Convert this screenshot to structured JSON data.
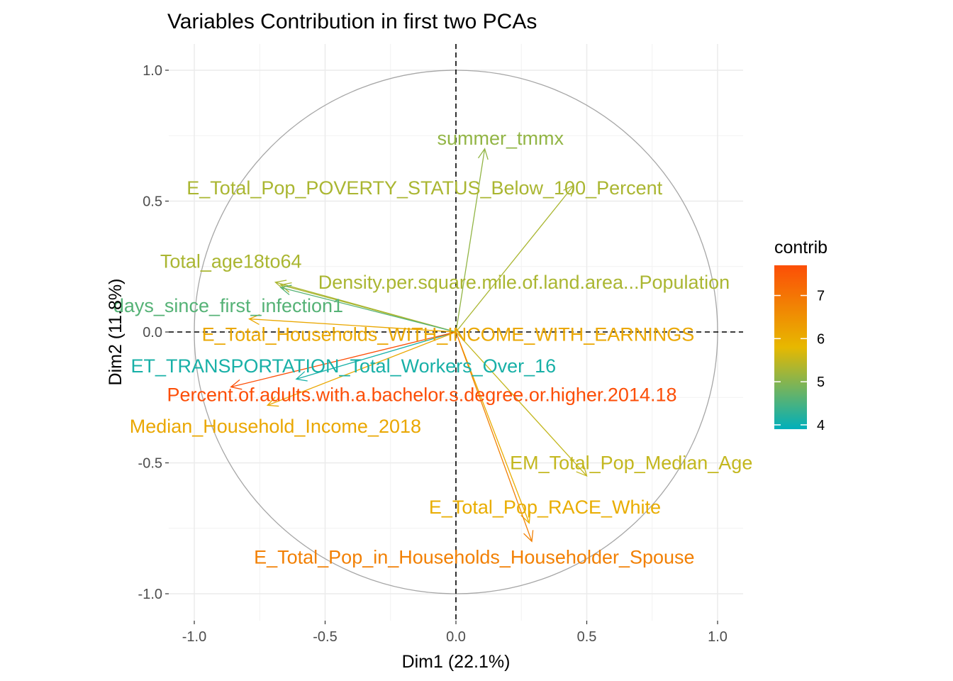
{
  "chart_data": {
    "type": "scatter",
    "subtype": "pca-variable-correlation-circle",
    "title": "Variables Contribution in first two PCAs",
    "xlabel": "Dim1 (22.1%)",
    "ylabel": "Dim2 (11.8%)",
    "xlim": [
      -1.1,
      1.1
    ],
    "ylim": [
      -1.1,
      1.1
    ],
    "x_ticks": [
      -1.0,
      -0.5,
      0.0,
      0.5,
      1.0
    ],
    "x_tick_labels": [
      "-1.0",
      "-0.5",
      "0.0",
      "0.5",
      "1.0"
    ],
    "y_ticks": [
      -1.0,
      -0.5,
      0.0,
      0.5,
      1.0
    ],
    "y_tick_labels": [
      "-1.0",
      "-0.5",
      "0.0",
      "0.5",
      "1.0"
    ],
    "grid": true,
    "unit_circle": true,
    "reference_lines": {
      "x": 0,
      "y": 0,
      "style": "dashed"
    },
    "color_scale": {
      "name": "contrib",
      "min": 3.9,
      "max": 7.7,
      "ticks": [
        4,
        5,
        6,
        7
      ],
      "tick_labels": [
        "4",
        "5",
        "6",
        "7"
      ],
      "colors": [
        "#00AFBB",
        "#E7B800",
        "#FC4E07"
      ],
      "legend_position": "right"
    },
    "variables": [
      {
        "label": "summer_tmmx",
        "x": 0.11,
        "y": 0.7,
        "label_x": 0.17,
        "label_y": 0.74,
        "contrib": 5.1
      },
      {
        "label": "E_Total_Pop_POVERTY_STATUS_Below_100_Percent",
        "x": 0.45,
        "y": 0.56,
        "label_x": -0.12,
        "label_y": 0.55,
        "contrib": 5.3
      },
      {
        "label": "Total_age18to64",
        "x": -0.69,
        "y": 0.19,
        "label_x": -0.86,
        "label_y": 0.27,
        "contrib": 5.3
      },
      {
        "label": "Density.per.square.mile.of.land.area...Population",
        "x": -0.67,
        "y": 0.18,
        "label_x": 0.26,
        "label_y": 0.19,
        "contrib": 5.3
      },
      {
        "label": "days_since_first_infection1",
        "x": -0.67,
        "y": 0.17,
        "label_x": -0.87,
        "label_y": 0.1,
        "contrib": 4.6
      },
      {
        "label": "E_Total_Households_WITH_INCOME_WITH_EARNINGS",
        "x": -0.79,
        "y": 0.05,
        "label_x": -0.03,
        "label_y": -0.01,
        "contrib": 6.1
      },
      {
        "label": "ET_TRANSPORTATION_Total_Workers_Over_16",
        "x": -0.61,
        "y": -0.18,
        "label_x": -0.43,
        "label_y": -0.13,
        "contrib": 4.1
      },
      {
        "label": "Percent.of.adults.with.a.bachelor.s.degree.or.higher.2014.18",
        "x": -0.86,
        "y": -0.21,
        "label_x": -0.13,
        "label_y": -0.24,
        "contrib": 7.7
      },
      {
        "label": "Median_Household_Income_2018",
        "x": -0.72,
        "y": -0.28,
        "label_x": -0.69,
        "label_y": -0.36,
        "contrib": 6.1
      },
      {
        "label": "EM_Total_Pop_Median_Age",
        "x": 0.5,
        "y": -0.55,
        "label_x": 0.67,
        "label_y": -0.5,
        "contrib": 5.5
      },
      {
        "label": "E_Total_Pop_RACE_White",
        "x": 0.28,
        "y": -0.73,
        "label_x": 0.34,
        "label_y": -0.67,
        "contrib": 6.0
      },
      {
        "label": "E_Total_Pop_in_Households_Householder_Spouse",
        "x": 0.29,
        "y": -0.8,
        "label_x": 0.07,
        "label_y": -0.86,
        "contrib": 6.8
      }
    ]
  }
}
